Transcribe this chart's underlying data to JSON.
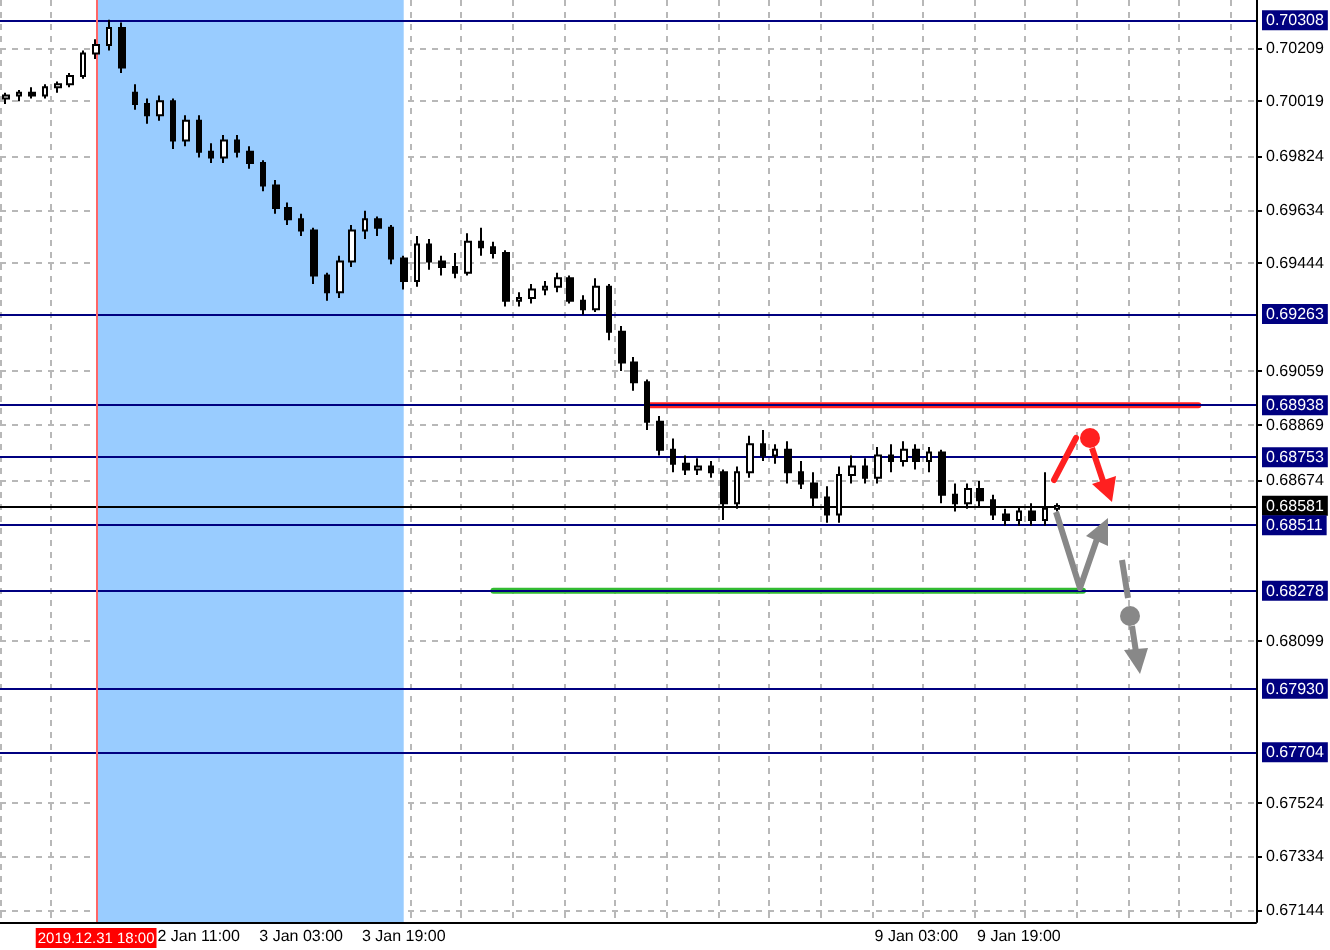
{
  "chart_data": {
    "type": "candlestick",
    "categories": [
      null,
      null,
      null,
      null,
      null,
      null,
      null,
      "2019.12.31 18:00",
      null,
      null,
      null,
      null,
      null,
      null,
      null,
      "2 Jan 11:00",
      null,
      null,
      null,
      null,
      null,
      null,
      null,
      "3 Jan 03:00",
      null,
      null,
      null,
      null,
      null,
      null,
      null,
      "3 Jan 19:00",
      null,
      null,
      null,
      null,
      null,
      null,
      null,
      null,
      null,
      null,
      null,
      null,
      null,
      null,
      null,
      null,
      null,
      null,
      null,
      null,
      null,
      null,
      null,
      null,
      null,
      null,
      null,
      null,
      null,
      null,
      null,
      null,
      null,
      null,
      null,
      null,
      null,
      null,
      null,
      "9 Jan 03:00",
      null,
      null,
      null,
      null,
      null,
      null,
      null,
      "9 Jan 19:00",
      null,
      null,
      null,
      null,
      null,
      null,
      null,
      null,
      null,
      null,
      null,
      null,
      null,
      null,
      null,
      null,
      null,
      null
    ],
    "ohlc": [
      [
        0.7003,
        0.7005,
        0.7001,
        0.7004
      ],
      [
        0.7004,
        0.7006,
        0.7002,
        0.7005
      ],
      [
        0.7005,
        0.7007,
        0.7003,
        0.7004
      ],
      [
        0.7004,
        0.7008,
        0.7003,
        0.7007
      ],
      [
        0.7007,
        0.7009,
        0.7005,
        0.7008
      ],
      [
        0.7008,
        0.7012,
        0.7007,
        0.7011
      ],
      [
        0.7011,
        0.702,
        0.701,
        0.7019
      ],
      [
        0.7019,
        0.7024,
        0.7017,
        0.7022
      ],
      [
        0.7022,
        0.7031,
        0.702,
        0.7028
      ],
      [
        0.7028,
        0.703,
        0.7012,
        0.7014
      ],
      [
        0.7005,
        0.7008,
        0.6999,
        0.7001
      ],
      [
        0.7001,
        0.7003,
        0.6994,
        0.6997
      ],
      [
        0.6997,
        0.7004,
        0.6995,
        0.7002
      ],
      [
        0.7002,
        0.7003,
        0.6985,
        0.6988
      ],
      [
        0.6988,
        0.6997,
        0.6986,
        0.6995
      ],
      [
        0.6995,
        0.6997,
        0.6982,
        0.6984
      ],
      [
        0.6984,
        0.6987,
        0.698,
        0.6982
      ],
      [
        0.6982,
        0.699,
        0.698,
        0.6988
      ],
      [
        0.6988,
        0.699,
        0.6982,
        0.6984
      ],
      [
        0.6984,
        0.6986,
        0.6978,
        0.698
      ],
      [
        0.698,
        0.6981,
        0.697,
        0.6972
      ],
      [
        0.6972,
        0.6974,
        0.6962,
        0.6964
      ],
      [
        0.6964,
        0.6966,
        0.6958,
        0.696
      ],
      [
        0.696,
        0.6962,
        0.6954,
        0.6956
      ],
      [
        0.6956,
        0.6957,
        0.6937,
        0.694
      ],
      [
        0.694,
        0.6941,
        0.6931,
        0.6934
      ],
      [
        0.6934,
        0.6947,
        0.6932,
        0.6945
      ],
      [
        0.6945,
        0.6958,
        0.6943,
        0.6956
      ],
      [
        0.6956,
        0.6963,
        0.6953,
        0.696
      ],
      [
        0.696,
        0.6961,
        0.6954,
        0.6957
      ],
      [
        0.6957,
        0.6958,
        0.6944,
        0.6946
      ],
      [
        0.6946,
        0.6947,
        0.6935,
        0.6938
      ],
      [
        0.6938,
        0.6954,
        0.6936,
        0.6951
      ],
      [
        0.6951,
        0.6953,
        0.6942,
        0.6945
      ],
      [
        0.6945,
        0.6947,
        0.694,
        0.6943
      ],
      [
        0.6943,
        0.6948,
        0.6939,
        0.6941
      ],
      [
        0.6941,
        0.6955,
        0.694,
        0.6952
      ],
      [
        0.6952,
        0.6957,
        0.6947,
        0.695
      ],
      [
        0.695,
        0.6952,
        0.6946,
        0.6948
      ],
      [
        0.6948,
        0.6949,
        0.6929,
        0.6931
      ],
      [
        0.6931,
        0.6934,
        0.6929,
        0.6932
      ],
      [
        0.6932,
        0.6937,
        0.693,
        0.6935
      ],
      [
        0.6935,
        0.6938,
        0.6933,
        0.6936
      ],
      [
        0.6936,
        0.6941,
        0.6934,
        0.6939
      ],
      [
        0.6939,
        0.694,
        0.693,
        0.6931
      ],
      [
        0.6931,
        0.6933,
        0.6926,
        0.6928
      ],
      [
        0.6928,
        0.6939,
        0.6927,
        0.6936
      ],
      [
        0.6936,
        0.6937,
        0.6917,
        0.692
      ],
      [
        0.692,
        0.6922,
        0.6906,
        0.6909
      ],
      [
        0.6909,
        0.6911,
        0.6899,
        0.6902
      ],
      [
        0.6902,
        0.6903,
        0.6885,
        0.6888
      ],
      [
        0.6888,
        0.689,
        0.6876,
        0.6878
      ],
      [
        0.6878,
        0.6882,
        0.687,
        0.6873
      ],
      [
        0.6873,
        0.6876,
        0.6869,
        0.6871
      ],
      [
        0.6871,
        0.6875,
        0.6869,
        0.6872
      ],
      [
        0.6872,
        0.6874,
        0.6868,
        0.687
      ],
      [
        0.687,
        0.6871,
        0.6853,
        0.6859
      ],
      [
        0.6859,
        0.6872,
        0.6857,
        0.687
      ],
      [
        0.687,
        0.6883,
        0.6868,
        0.688
      ],
      [
        0.688,
        0.6885,
        0.6874,
        0.6876
      ],
      [
        0.6876,
        0.688,
        0.6873,
        0.6878
      ],
      [
        0.6878,
        0.6881,
        0.6866,
        0.687
      ],
      [
        0.687,
        0.6874,
        0.6864,
        0.6866
      ],
      [
        0.6866,
        0.687,
        0.6858,
        0.6861
      ],
      [
        0.6861,
        0.6865,
        0.6852,
        0.6855
      ],
      [
        0.6855,
        0.6872,
        0.6852,
        0.6869
      ],
      [
        0.6869,
        0.6876,
        0.6866,
        0.6872
      ],
      [
        0.6872,
        0.6875,
        0.6866,
        0.6868
      ],
      [
        0.6868,
        0.6879,
        0.6866,
        0.6876
      ],
      [
        0.6876,
        0.688,
        0.687,
        0.6874
      ],
      [
        0.6874,
        0.6881,
        0.6872,
        0.6878
      ],
      [
        0.6878,
        0.688,
        0.6871,
        0.6874
      ],
      [
        0.6874,
        0.6879,
        0.687,
        0.6877
      ],
      [
        0.6877,
        0.6878,
        0.6859,
        0.6862
      ],
      [
        0.6862,
        0.6866,
        0.6856,
        0.6859
      ],
      [
        0.6859,
        0.6866,
        0.6857,
        0.6864
      ],
      [
        0.6864,
        0.6867,
        0.6858,
        0.686
      ],
      [
        0.686,
        0.6862,
        0.6853,
        0.6855
      ],
      [
        0.6855,
        0.6857,
        0.6851,
        0.6853
      ],
      [
        0.6853,
        0.6858,
        0.6851,
        0.6856
      ],
      [
        0.6856,
        0.6859,
        0.6851,
        0.6853
      ],
      [
        0.6853,
        0.687,
        0.6851,
        0.6857
      ],
      [
        0.6857,
        0.6859,
        0.6856,
        0.6858
      ],
      null,
      null,
      null,
      null,
      null,
      null,
      null,
      null,
      null,
      null,
      null,
      null,
      null,
      null,
      null
    ],
    "series": [
      {
        "type": "line",
        "color": "#ff2020",
        "values": [
          null,
          null,
          null,
          null,
          null,
          null,
          null,
          null,
          null,
          null,
          null,
          null,
          null,
          null,
          null,
          null,
          null,
          null,
          null,
          null,
          null,
          null,
          null,
          null,
          null,
          null,
          null,
          null,
          null,
          null,
          null,
          null,
          null,
          null,
          null,
          null,
          null,
          null,
          null,
          null,
          null,
          null,
          null,
          null,
          null,
          null,
          null,
          null,
          null,
          null,
          0.68938,
          0.68938,
          0.68938,
          0.68938,
          0.68938,
          0.68938,
          0.68938,
          0.68938,
          0.68938,
          0.68938,
          0.68938,
          0.68938,
          0.68938,
          0.68938,
          0.68938,
          0.68938,
          0.68938,
          0.68938,
          0.68938,
          0.68938,
          0.68938,
          0.68938,
          0.68938,
          0.68938,
          0.68938,
          0.68938,
          0.68938,
          0.68938,
          0.68938,
          0.68938,
          0.68938,
          0.68938,
          0.68938,
          0.68938,
          0.68938,
          0.68938,
          0.68938,
          0.68938,
          0.68938,
          0.68938,
          0.68938,
          0.68938,
          0.68938,
          0.68938,
          null,
          null,
          null,
          null
        ]
      },
      {
        "type": "line",
        "color": "#33bb33",
        "values": [
          null,
          null,
          null,
          null,
          null,
          null,
          null,
          null,
          null,
          null,
          null,
          null,
          null,
          null,
          null,
          null,
          null,
          null,
          null,
          null,
          null,
          null,
          null,
          null,
          null,
          null,
          null,
          null,
          null,
          null,
          null,
          null,
          null,
          null,
          null,
          null,
          null,
          null,
          0.68278,
          0.68278,
          0.68278,
          0.68278,
          0.68278,
          0.68278,
          0.68278,
          0.68278,
          0.68278,
          0.68278,
          0.68278,
          0.68278,
          0.68278,
          0.68278,
          0.68278,
          0.68278,
          0.68278,
          0.68278,
          0.68278,
          0.68278,
          0.68278,
          0.68278,
          0.68278,
          0.68278,
          0.68278,
          0.68278,
          0.68278,
          0.68278,
          0.68278,
          0.68278,
          0.68278,
          0.68278,
          0.68278,
          0.68278,
          0.68278,
          0.68278,
          0.68278,
          0.68278,
          0.68278,
          0.68278,
          0.68278,
          0.68278,
          0.68278,
          0.68278,
          0.68278,
          0.68278,
          0.68278,
          null,
          null,
          null,
          null,
          null,
          null,
          null,
          null,
          null,
          null,
          null,
          null,
          null
        ]
      }
    ],
    "ylim": [
      0.671,
      0.7038
    ],
    "yticks": [
      0.67144,
      0.67334,
      0.67524,
      0.68099,
      0.68674,
      0.68869,
      0.69059,
      0.69444,
      0.69634,
      0.69824,
      0.70019,
      0.70209
    ],
    "grid": true,
    "ref_lines": [
      {
        "axis": "y",
        "value": 0.70308,
        "label": "0.70308",
        "color": "#000080"
      },
      {
        "axis": "y",
        "value": 0.69263,
        "label": "0.69263",
        "color": "#000080"
      },
      {
        "axis": "y",
        "value": 0.68938,
        "label": "0.68938",
        "color": "#000080"
      },
      {
        "axis": "y",
        "value": 0.68753,
        "label": "0.68753",
        "color": "#000080"
      },
      {
        "axis": "y",
        "value": 0.68581,
        "label": "0.68581",
        "color": "#000000"
      },
      {
        "axis": "y",
        "value": 0.68511,
        "label": "0.68511",
        "color": "#000080"
      },
      {
        "axis": "y",
        "value": 0.68278,
        "label": "0.68278",
        "color": "#000080"
      },
      {
        "axis": "y",
        "value": 0.6793,
        "label": "0.67930",
        "color": "#000080"
      },
      {
        "axis": "y",
        "value": 0.67704,
        "label": "0.67704",
        "color": "#000080"
      },
      {
        "axis": "x",
        "value": "2019.12.31 18:00",
        "color": "#ff6666"
      }
    ],
    "bands": [
      {
        "axis": "x",
        "from": "2019.12.31 18:00",
        "to": "3 Jan 19:00",
        "color": "#99ccff"
      }
    ]
  }
}
